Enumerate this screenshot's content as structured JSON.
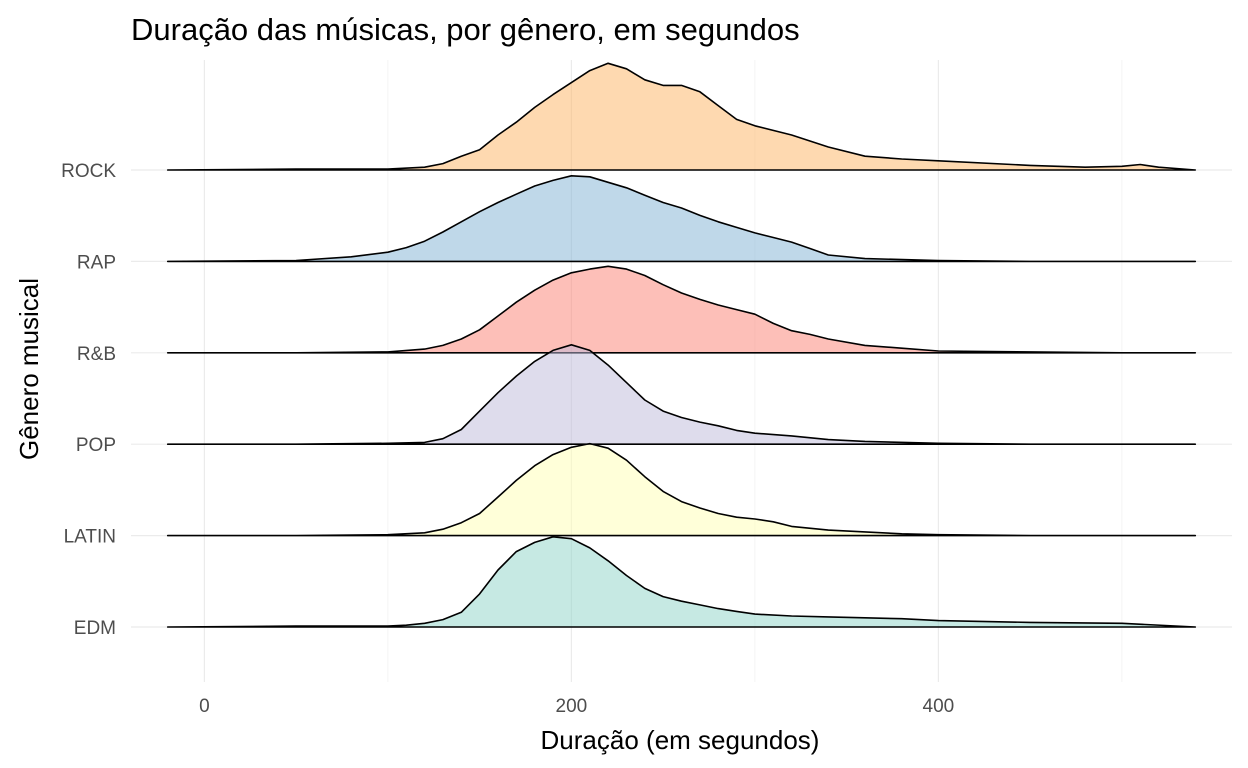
{
  "chart_data": {
    "type": "ridgeline",
    "title": "Duração das músicas, por gênero, em segundos",
    "xlabel": "Duração (em segundos)",
    "ylabel": "Gênero musical",
    "xlim": [
      -40,
      560
    ],
    "x_ticks": [
      0,
      200,
      400
    ],
    "x_minor_ticks": [
      100,
      300,
      500
    ],
    "grid": true,
    "legend": "none",
    "series": [
      {
        "name": "EDM",
        "color": "#8dd3c7",
        "x": [
          -20,
          50,
          100,
          110,
          120,
          130,
          140,
          150,
          160,
          170,
          180,
          190,
          200,
          210,
          220,
          230,
          240,
          250,
          260,
          270,
          280,
          290,
          300,
          320,
          340,
          360,
          380,
          400,
          450,
          500,
          540
        ],
        "density": [
          0.0,
          0.01,
          0.01,
          0.02,
          0.04,
          0.08,
          0.16,
          0.36,
          0.62,
          0.82,
          0.92,
          0.98,
          0.96,
          0.86,
          0.72,
          0.56,
          0.42,
          0.33,
          0.28,
          0.24,
          0.2,
          0.17,
          0.14,
          0.12,
          0.11,
          0.1,
          0.09,
          0.07,
          0.05,
          0.04,
          0.0
        ]
      },
      {
        "name": "LATIN",
        "color": "#ffffb3",
        "x": [
          -20,
          50,
          100,
          120,
          130,
          140,
          150,
          160,
          170,
          180,
          190,
          200,
          210,
          220,
          230,
          240,
          250,
          260,
          270,
          280,
          290,
          300,
          310,
          320,
          340,
          360,
          380,
          400,
          450,
          500,
          540
        ],
        "density": [
          0.0,
          0.0,
          0.01,
          0.03,
          0.07,
          0.14,
          0.24,
          0.42,
          0.6,
          0.76,
          0.88,
          0.96,
          1.0,
          0.95,
          0.82,
          0.64,
          0.48,
          0.37,
          0.3,
          0.24,
          0.2,
          0.18,
          0.15,
          0.1,
          0.06,
          0.04,
          0.02,
          0.01,
          0.0,
          0.0,
          0.0
        ]
      },
      {
        "name": "POP",
        "color": "#bebada",
        "x": [
          -20,
          50,
          100,
          120,
          130,
          140,
          150,
          160,
          170,
          180,
          190,
          200,
          210,
          220,
          230,
          240,
          250,
          260,
          270,
          280,
          290,
          300,
          320,
          340,
          360,
          400,
          450,
          500,
          540
        ],
        "density": [
          0.0,
          0.0,
          0.01,
          0.02,
          0.06,
          0.16,
          0.36,
          0.56,
          0.74,
          0.9,
          1.02,
          1.08,
          1.02,
          0.86,
          0.67,
          0.48,
          0.36,
          0.29,
          0.24,
          0.2,
          0.15,
          0.12,
          0.09,
          0.05,
          0.03,
          0.01,
          0.0,
          0.0,
          0.0
        ]
      },
      {
        "name": "R&B",
        "color": "#fb8072",
        "x": [
          -20,
          50,
          100,
          120,
          130,
          140,
          150,
          160,
          170,
          180,
          190,
          200,
          210,
          220,
          230,
          240,
          250,
          260,
          270,
          280,
          290,
          300,
          310,
          320,
          330,
          340,
          360,
          380,
          400,
          450,
          500,
          540
        ],
        "density": [
          0.0,
          0.0,
          0.01,
          0.04,
          0.08,
          0.15,
          0.25,
          0.4,
          0.55,
          0.68,
          0.79,
          0.87,
          0.91,
          0.94,
          0.91,
          0.84,
          0.74,
          0.65,
          0.58,
          0.52,
          0.47,
          0.42,
          0.32,
          0.24,
          0.2,
          0.15,
          0.08,
          0.05,
          0.02,
          0.01,
          0.0,
          0.0
        ]
      },
      {
        "name": "RAP",
        "color": "#80b1d3",
        "x": [
          -20,
          50,
          80,
          100,
          110,
          120,
          130,
          140,
          150,
          160,
          170,
          180,
          190,
          200,
          210,
          220,
          230,
          240,
          250,
          260,
          270,
          280,
          290,
          300,
          310,
          320,
          330,
          340,
          360,
          400,
          450,
          540
        ],
        "density": [
          0.0,
          0.01,
          0.05,
          0.1,
          0.15,
          0.22,
          0.32,
          0.43,
          0.54,
          0.64,
          0.73,
          0.82,
          0.88,
          0.93,
          0.92,
          0.86,
          0.8,
          0.72,
          0.64,
          0.58,
          0.5,
          0.43,
          0.37,
          0.31,
          0.26,
          0.21,
          0.14,
          0.07,
          0.03,
          0.01,
          0.0,
          0.0
        ]
      },
      {
        "name": "ROCK",
        "color": "#fdb462",
        "x": [
          -20,
          50,
          100,
          120,
          130,
          140,
          150,
          160,
          170,
          180,
          190,
          200,
          210,
          220,
          230,
          240,
          250,
          260,
          270,
          280,
          290,
          300,
          320,
          340,
          360,
          380,
          400,
          450,
          480,
          500,
          510,
          520,
          540
        ],
        "density": [
          0.0,
          0.01,
          0.01,
          0.03,
          0.07,
          0.15,
          0.22,
          0.38,
          0.52,
          0.68,
          0.82,
          0.95,
          1.08,
          1.16,
          1.1,
          0.98,
          0.92,
          0.92,
          0.85,
          0.7,
          0.55,
          0.48,
          0.38,
          0.25,
          0.15,
          0.12,
          0.1,
          0.05,
          0.03,
          0.04,
          0.06,
          0.03,
          0.0
        ]
      }
    ]
  }
}
